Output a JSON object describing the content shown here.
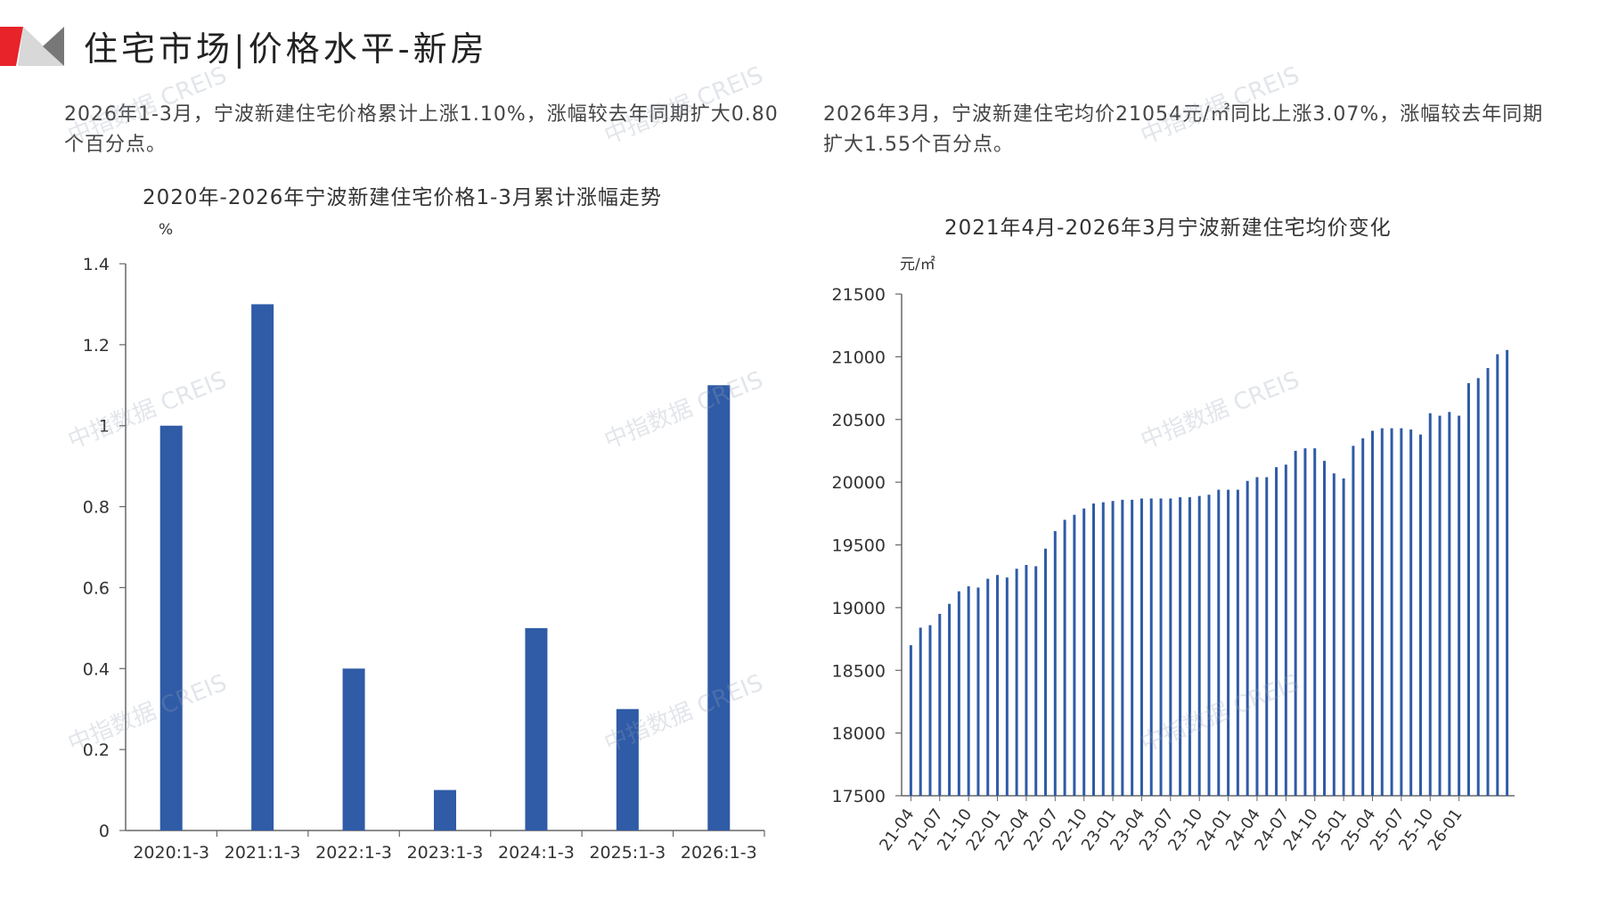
{
  "header": {
    "title": "住宅市场|价格水平-新房",
    "accent_color": "#e8232a",
    "logo_icon": "red-gray-chevron-icon"
  },
  "summary": {
    "left": "2026年1-3月，宁波新建住宅价格累计上涨1.10%，涨幅较去年同期扩大0.80个百分点。",
    "right": "2026年3月，宁波新建住宅均价21054元/㎡同比上涨3.07%，涨幅较去年同期扩大1.55个百分点。"
  },
  "watermark": "中指数据 CREIS",
  "chart_data": [
    {
      "type": "bar",
      "title": "2020年-2026年宁波新建住宅价格1-3月累计涨幅走势",
      "ylabel": "%",
      "categories": [
        "2020:1-3",
        "2021:1-3",
        "2022:1-3",
        "2023:1-3",
        "2024:1-3",
        "2025:1-3",
        "2026:1-3"
      ],
      "values": [
        1.0,
        1.3,
        0.4,
        0.1,
        0.5,
        0.3,
        1.1
      ],
      "ylim": [
        0,
        1.4
      ],
      "yticks": [
        "0",
        "0.2",
        "0.4",
        "0.6",
        "0.8",
        "1",
        "1.2",
        "1.4"
      ],
      "color": "#2f5ba7",
      "grid": false
    },
    {
      "type": "bar",
      "title": "2021年4月-2026年3月宁波新建住宅均价变化",
      "ylabel": "元/㎡",
      "ylim": [
        17500,
        21500
      ],
      "yticks": [
        "17500",
        "18000",
        "18500",
        "19000",
        "19500",
        "20000",
        "20500",
        "21000",
        "21500"
      ],
      "xtick_labels": [
        "21-04",
        "21-07",
        "21-10",
        "22-01",
        "22-04",
        "22-07",
        "22-10",
        "23-01",
        "23-04",
        "23-07",
        "23-10",
        "24-01",
        "24-04",
        "24-07",
        "24-10",
        "25-01",
        "25-04",
        "25-07",
        "25-10",
        "26-01"
      ],
      "values": [
        18700,
        18840,
        18860,
        18950,
        19030,
        19130,
        19170,
        19160,
        19230,
        19260,
        19240,
        19310,
        19340,
        19330,
        19470,
        19610,
        19700,
        19740,
        19790,
        19830,
        19840,
        19850,
        19860,
        19860,
        19870,
        19870,
        19870,
        19870,
        19880,
        19880,
        19890,
        19900,
        19940,
        19940,
        19940,
        20010,
        20040,
        20040,
        20120,
        20140,
        20250,
        20270,
        20270,
        20170,
        20070,
        20030,
        20290,
        20350,
        20410,
        20430,
        20430,
        20430,
        20420,
        20380,
        20550,
        20530,
        20560,
        20530,
        20790,
        20830,
        20910,
        21020,
        21054
      ],
      "color": "#2f5ba7",
      "grid": false
    }
  ]
}
